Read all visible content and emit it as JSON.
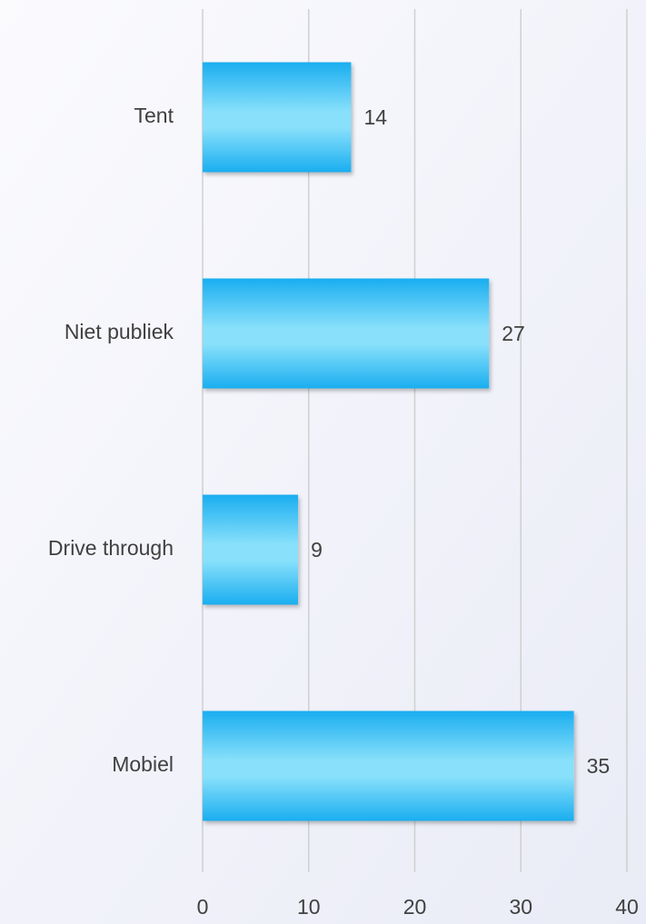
{
  "chart_data": {
    "type": "bar",
    "orientation": "horizontal",
    "categories": [
      "Tent",
      "Niet publiek",
      "Drive through",
      "Mobiel"
    ],
    "values": [
      14,
      27,
      9,
      35
    ],
    "color": "#1aaef0",
    "xlim": [
      0,
      40
    ],
    "xticks": [
      0,
      10,
      20,
      30,
      40
    ],
    "grid": true
  }
}
